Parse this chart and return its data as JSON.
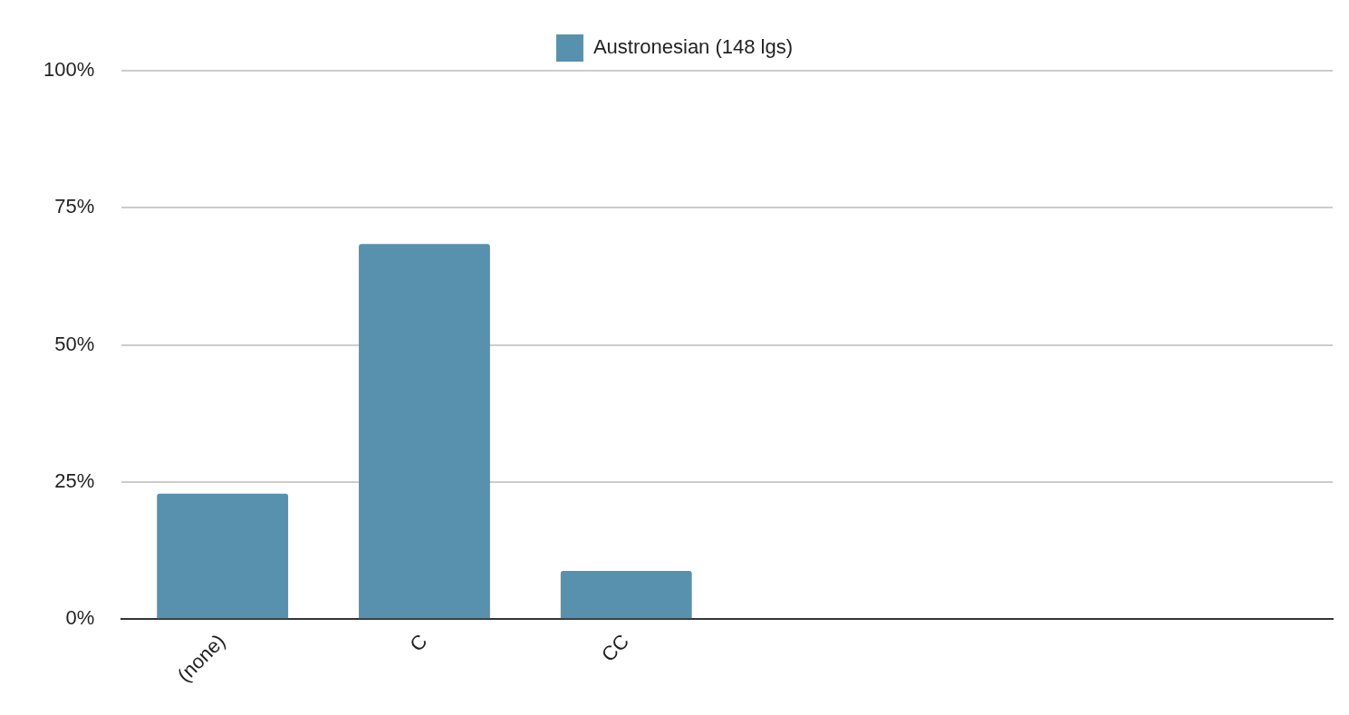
{
  "chart_data": {
    "type": "bar",
    "categories": [
      "(none)",
      "C",
      "CC",
      null,
      null,
      null
    ],
    "series": [
      {
        "name": "Austronesian (148 lgs)",
        "color": "#5891ad",
        "values": [
          22.9,
          68.4,
          8.8,
          null,
          null,
          null
        ]
      }
    ],
    "ylim": [
      0,
      100
    ],
    "yticks": [
      {
        "value": 0,
        "label": "0%"
      },
      {
        "value": 25,
        "label": "25%"
      },
      {
        "value": 50,
        "label": "50%"
      },
      {
        "value": 75,
        "label": "75%"
      },
      {
        "value": 100,
        "label": "100%"
      }
    ],
    "grid": "y",
    "legend": "top"
  }
}
